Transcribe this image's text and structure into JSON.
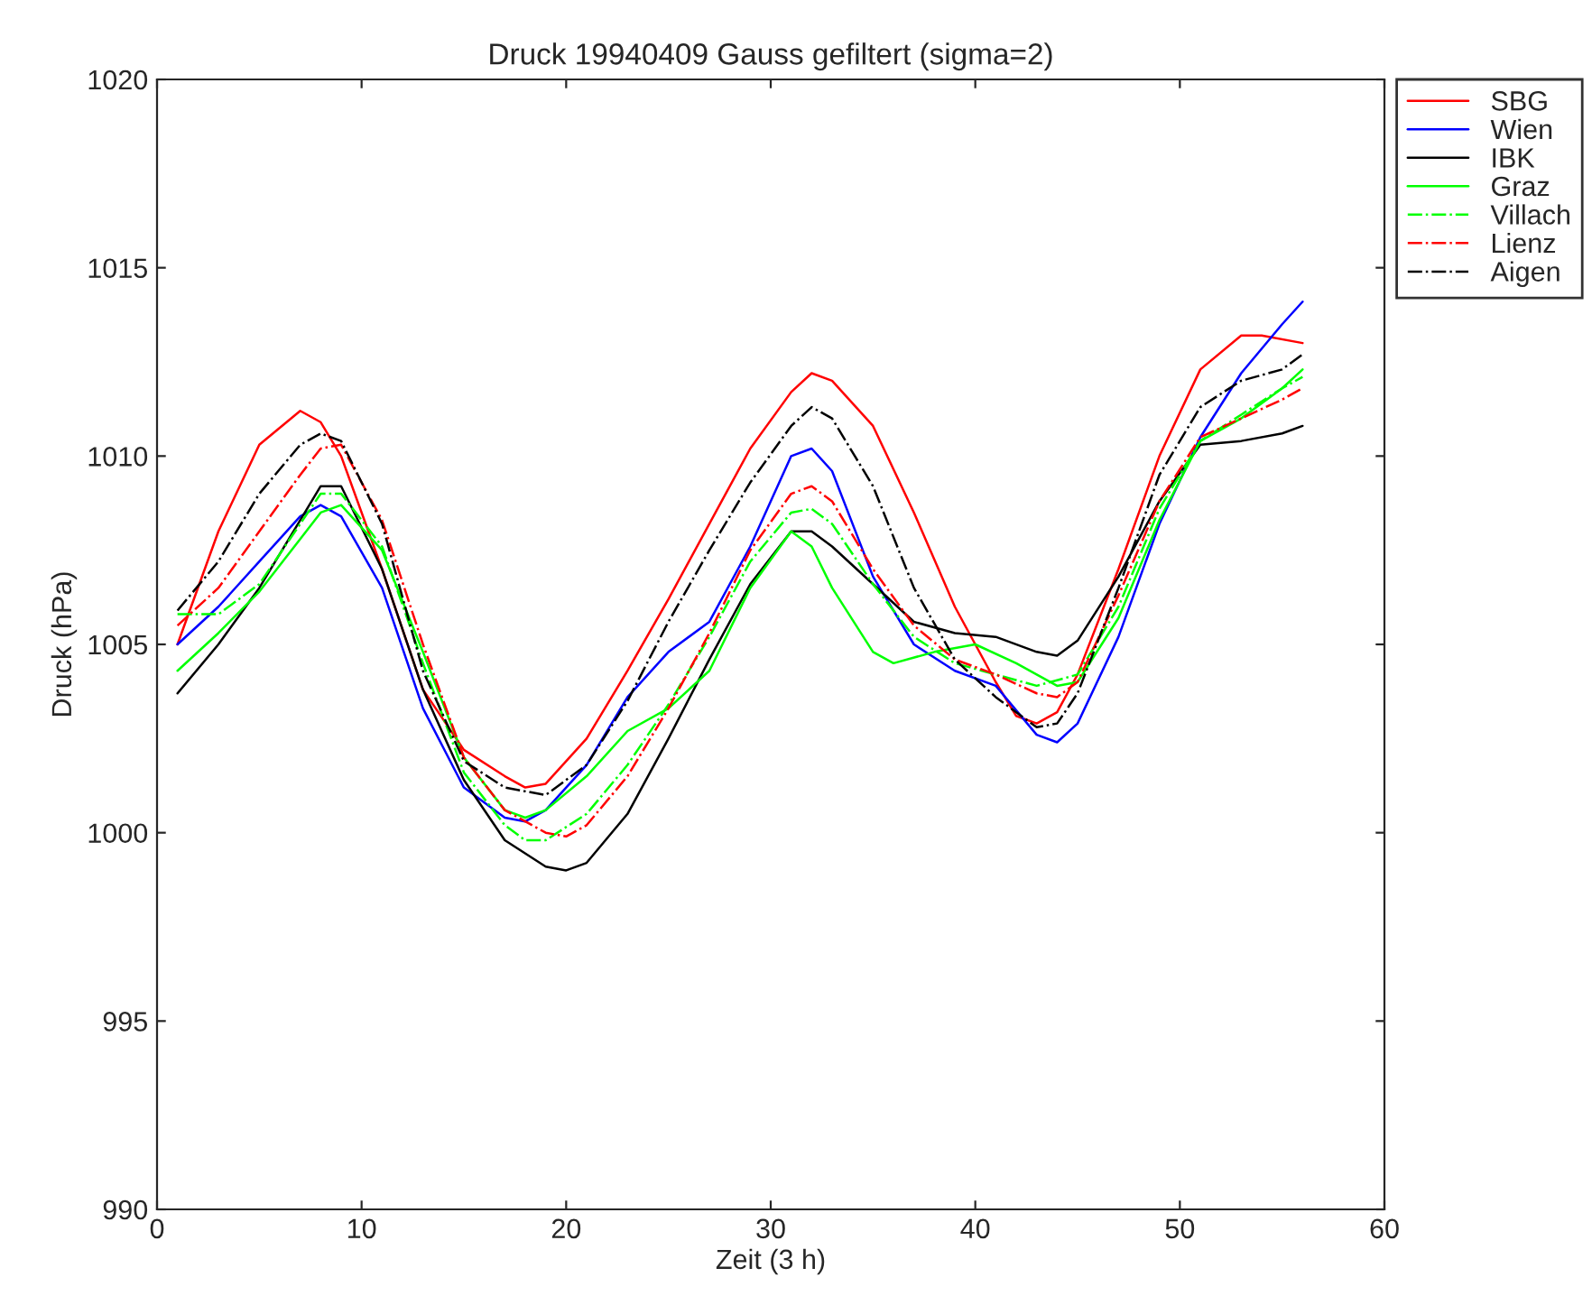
{
  "chart_data": {
    "type": "line",
    "title": "Druck 19940409 Gauss gefiltert (sigma=2)",
    "xlabel": "Zeit (3 h)",
    "ylabel": "Druck (hPa)",
    "xlim": [
      0,
      60
    ],
    "ylim": [
      990,
      1020
    ],
    "xticks": [
      0,
      10,
      20,
      30,
      40,
      50,
      60
    ],
    "yticks": [
      990,
      995,
      1000,
      1005,
      1010,
      1015,
      1020
    ],
    "grid": false,
    "legend": "top right",
    "marker": "none",
    "series": [
      {
        "name": "SBG",
        "color": "#ff0000",
        "line_style": "solid",
        "x": [
          1,
          3,
          5,
          7,
          8,
          9,
          11,
          13,
          15,
          17,
          18,
          19,
          21,
          23,
          25,
          27,
          29,
          31,
          32,
          33,
          35,
          37,
          39,
          41,
          42,
          43,
          44,
          45,
          47,
          49,
          51,
          53,
          54,
          56
        ],
        "values": [
          1005,
          1008,
          1010.3,
          1011.2,
          1010.9,
          1010,
          1007,
          1003.8,
          1002.2,
          1001.5,
          1001.2,
          1001.3,
          1002.5,
          1004.3,
          1006.2,
          1008.2,
          1010.2,
          1011.7,
          1012.2,
          1012,
          1010.8,
          1008.5,
          1006,
          1004,
          1003.1,
          1002.9,
          1003.2,
          1004.2,
          1007,
          1010,
          1012.3,
          1013.2,
          1013.2,
          1013
        ]
      },
      {
        "name": "Wien",
        "color": "#0000ff",
        "line_style": "solid",
        "x": [
          1,
          3,
          5,
          7,
          8,
          9,
          11,
          13,
          15,
          17,
          18,
          19,
          21,
          23,
          25,
          27,
          29,
          31,
          32,
          33,
          35,
          37,
          39,
          41,
          43,
          44,
          45,
          47,
          49,
          51,
          53,
          55,
          56
        ],
        "values": [
          1005,
          1006,
          1007.2,
          1008.4,
          1008.7,
          1008.4,
          1006.5,
          1003.3,
          1001.2,
          1000.4,
          1000.3,
          1000.6,
          1001.8,
          1003.6,
          1004.8,
          1005.6,
          1007.6,
          1010,
          1010.2,
          1009.6,
          1006.8,
          1005,
          1004.3,
          1003.9,
          1002.6,
          1002.4,
          1002.9,
          1005.2,
          1008.2,
          1010.5,
          1012.2,
          1013.5,
          1014.1
        ]
      },
      {
        "name": "IBK",
        "color": "#000000",
        "line_style": "solid",
        "x": [
          1,
          3,
          5,
          7,
          8,
          9,
          11,
          13,
          15,
          17,
          19,
          20,
          21,
          23,
          25,
          27,
          29,
          31,
          32,
          33,
          35,
          37,
          39,
          41,
          43,
          44,
          45,
          47,
          49,
          51,
          53,
          55,
          56
        ],
        "values": [
          1003.7,
          1005,
          1006.5,
          1008.3,
          1009.2,
          1009.2,
          1007,
          1003.8,
          1001.4,
          999.8,
          999.1,
          999,
          999.2,
          1000.5,
          1002.5,
          1004.6,
          1006.6,
          1008,
          1008,
          1007.6,
          1006.6,
          1005.6,
          1005.3,
          1005.2,
          1004.8,
          1004.7,
          1005.1,
          1006.8,
          1008.8,
          1010.3,
          1010.4,
          1010.6,
          1010.8
        ]
      },
      {
        "name": "Graz",
        "color": "#00ff00",
        "line_style": "solid",
        "x": [
          1,
          3,
          5,
          7,
          8,
          9,
          11,
          13,
          15,
          17,
          18,
          19,
          21,
          23,
          25,
          27,
          29,
          31,
          32,
          33,
          35,
          36,
          38,
          40,
          42,
          44,
          45,
          47,
          49,
          51,
          53,
          55,
          56
        ],
        "values": [
          1004.3,
          1005.3,
          1006.4,
          1007.8,
          1008.5,
          1008.7,
          1007.5,
          1004.8,
          1002,
          1000.6,
          1000.4,
          1000.6,
          1001.5,
          1002.7,
          1003.3,
          1004.3,
          1006.5,
          1008,
          1007.6,
          1006.5,
          1004.8,
          1004.5,
          1004.8,
          1005,
          1004.5,
          1003.9,
          1004,
          1005.7,
          1008.3,
          1010.4,
          1011,
          1011.8,
          1012.3
        ]
      },
      {
        "name": "Villach",
        "color": "#00ff00",
        "line_style": "dashdot",
        "x": [
          1,
          3,
          5,
          7,
          8,
          9,
          11,
          13,
          15,
          17,
          18,
          19,
          21,
          23,
          25,
          27,
          29,
          31,
          32,
          33,
          35,
          37,
          39,
          41,
          43,
          45,
          47,
          49,
          51,
          53,
          55,
          56
        ],
        "values": [
          1005.8,
          1005.8,
          1006.6,
          1008.2,
          1009,
          1009,
          1007.6,
          1004.5,
          1001.6,
          1000.2,
          999.8,
          999.8,
          1000.5,
          1001.8,
          1003.4,
          1005.2,
          1007.2,
          1008.5,
          1008.6,
          1008.2,
          1006.6,
          1005.2,
          1004.5,
          1004.2,
          1003.9,
          1004.2,
          1006,
          1008.6,
          1010.4,
          1011.1,
          1011.8,
          1012.1
        ]
      },
      {
        "name": "Lienz",
        "color": "#ff0000",
        "line_style": "dashdot",
        "x": [
          1,
          3,
          5,
          7,
          8,
          9,
          11,
          13,
          15,
          17,
          19,
          20,
          21,
          23,
          25,
          27,
          29,
          31,
          32,
          33,
          35,
          37,
          39,
          41,
          43,
          44,
          45,
          47,
          49,
          51,
          53,
          55,
          56
        ],
        "values": [
          1005.5,
          1006.5,
          1008,
          1009.5,
          1010.2,
          1010.3,
          1008.3,
          1005,
          1002,
          1000.6,
          1000,
          999.9,
          1000.2,
          1001.5,
          1003.3,
          1005.3,
          1007.5,
          1009,
          1009.2,
          1008.8,
          1007,
          1005.5,
          1004.6,
          1004.2,
          1003.7,
          1003.6,
          1004,
          1006.3,
          1008.8,
          1010.5,
          1011,
          1011.5,
          1011.8
        ]
      },
      {
        "name": "Aigen",
        "color": "#000000",
        "line_style": "dashdot",
        "x": [
          1,
          3,
          5,
          7,
          8,
          9,
          11,
          13,
          15,
          17,
          19,
          21,
          23,
          25,
          27,
          29,
          31,
          32,
          33,
          35,
          37,
          39,
          41,
          43,
          44,
          45,
          47,
          49,
          51,
          53,
          55,
          56
        ],
        "values": [
          1005.9,
          1007.2,
          1009,
          1010.3,
          1010.6,
          1010.4,
          1008.2,
          1004.3,
          1001.9,
          1001.2,
          1001,
          1001.8,
          1003.5,
          1005.6,
          1007.5,
          1009.3,
          1010.8,
          1011.3,
          1011,
          1009.2,
          1006.5,
          1004.6,
          1003.6,
          1002.8,
          1002.9,
          1003.7,
          1006.5,
          1009.5,
          1011.3,
          1012,
          1012.3,
          1012.7
        ]
      }
    ]
  }
}
